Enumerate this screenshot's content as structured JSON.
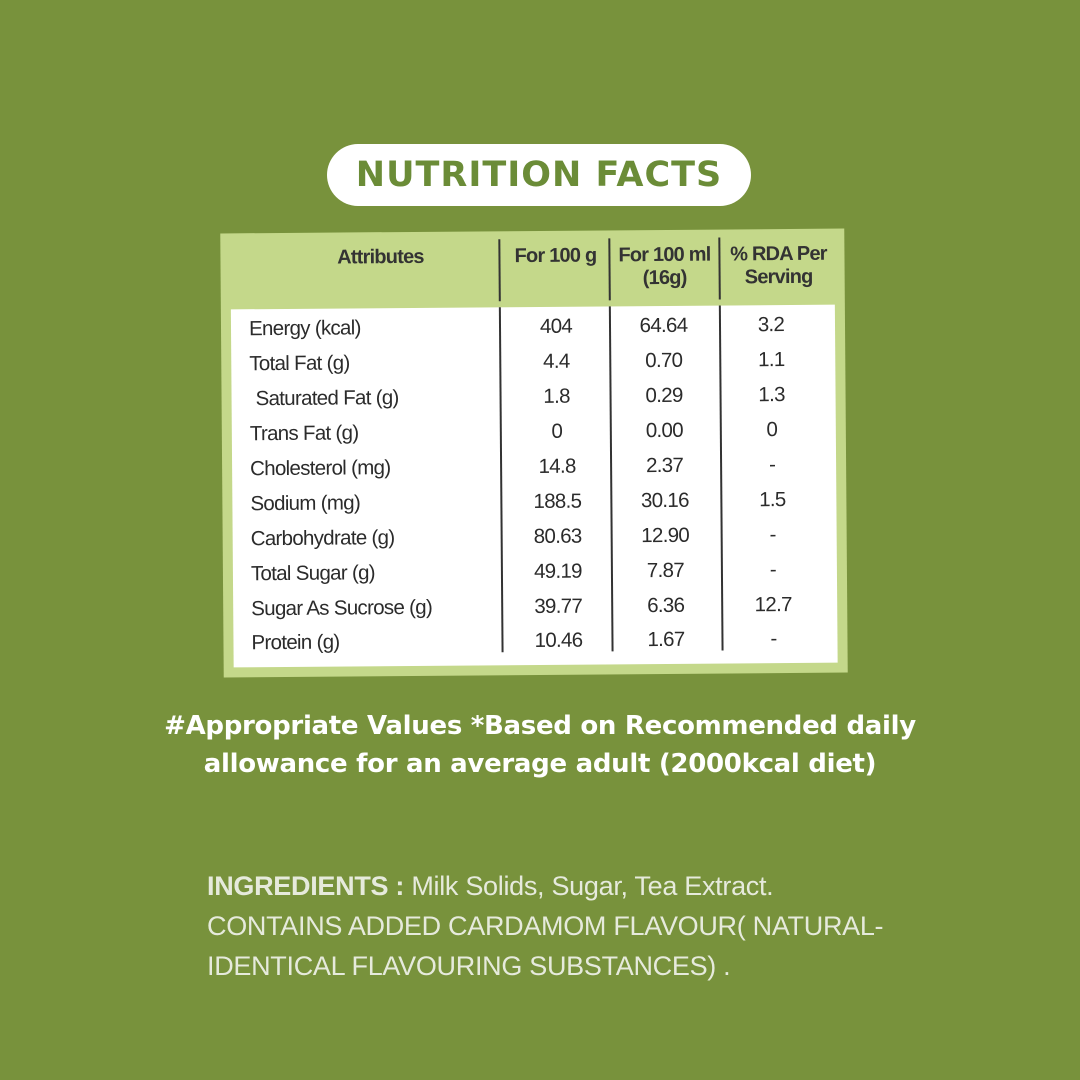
{
  "title": "NUTRITION FACTS",
  "table": {
    "headers": {
      "attributes": "Attributes",
      "per100g": "For 100 g",
      "per100ml_line1": "For 100 ml",
      "per100ml_line2": "(16g)",
      "rda_line1": "% RDA Per",
      "rda_line2": "Serving"
    },
    "rows": [
      {
        "name": "Energy (kcal)",
        "per100g": "404",
        "per100ml": "64.64",
        "rda": "3.2"
      },
      {
        "name": "Total Fat (g)",
        "per100g": "4.4",
        "per100ml": "0.70",
        "rda": "1.1"
      },
      {
        "name": " Saturated Fat (g)",
        "per100g": "1.8",
        "per100ml": "0.29",
        "rda": "1.3"
      },
      {
        "name": "Trans Fat (g)",
        "per100g": "0",
        "per100ml": "0.00",
        "rda": "0"
      },
      {
        "name": "Cholesterol (mg)",
        "per100g": "14.8",
        "per100ml": "2.37",
        "rda": "-"
      },
      {
        "name": "Sodium (mg)",
        "per100g": "188.5",
        "per100ml": "30.16",
        "rda": "1.5"
      },
      {
        "name": "Carbohydrate (g)",
        "per100g": "80.63",
        "per100ml": "12.90",
        "rda": "-"
      },
      {
        "name": "Total Sugar (g)",
        "per100g": "49.19",
        "per100ml": "7.87",
        "rda": "-"
      },
      {
        "name": "Sugar As Sucrose (g)",
        "per100g": "39.77",
        "per100ml": "6.36",
        "rda": "12.7"
      },
      {
        "name": "Protein (g)",
        "per100g": "10.46",
        "per100ml": "1.67",
        "rda": "-"
      }
    ]
  },
  "footnote": {
    "line1": "#Appropriate Values *Based on Recommended daily",
    "line2": "allowance for an average adult (2000kcal diet)"
  },
  "ingredients": {
    "label": "INGREDIENTS :",
    "line1_rest": " Milk Solids, Sugar, Tea Extract.",
    "line2": "CONTAINS ADDED CARDAMOM FLAVOUR( NATURAL-",
    "line3": "IDENTICAL FLAVOURING  SUBSTANCES) ."
  },
  "colors": {
    "background": "#78923c",
    "panel": "#c4d88a",
    "title_text": "#6b8c37"
  }
}
